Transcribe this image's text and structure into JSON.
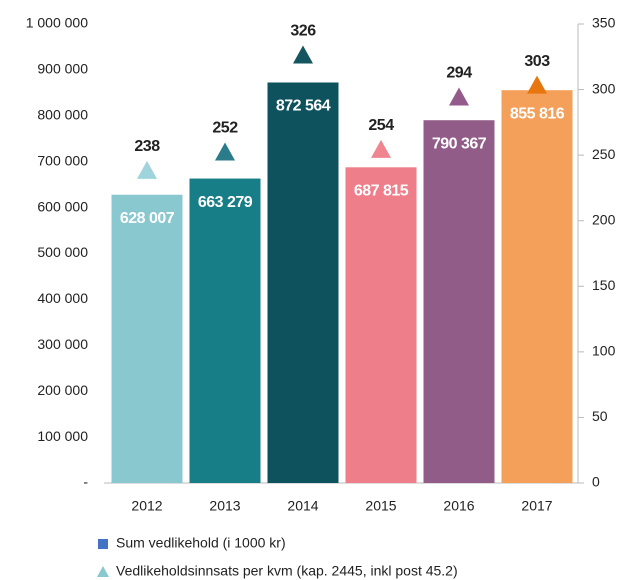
{
  "chart_data": {
    "type": "bar",
    "categories": [
      "2012",
      "2013",
      "2014",
      "2015",
      "2016",
      "2017"
    ],
    "series": [
      {
        "name": "Sum vedlikehold (i 1000 kr)",
        "type": "bar",
        "color": "#4472c4",
        "colors": [
          "#8ac8d0",
          "#177d87",
          "#0d525d",
          "#ee7f8a",
          "#925c88",
          "#f4a05a"
        ],
        "values": [
          628007,
          663279,
          872564,
          687815,
          790367,
          855816
        ],
        "value_labels": [
          "628 007",
          "663 279",
          "872 564",
          "687 815",
          "790 367",
          "855 816"
        ]
      },
      {
        "name": "Vedlikeholdsinnsats per kvm (kap. 2445, inkl post 45.2)",
        "type": "triangle",
        "axis": "y2",
        "color": "#8ac8d0",
        "colors": [
          "#9fd4dc",
          "#2a7c8a",
          "#155560",
          "#f08590",
          "#955a8c",
          "#e8760e"
        ],
        "values": [
          238,
          252,
          326,
          254,
          294,
          303
        ]
      }
    ],
    "ylim": [
      0,
      1000000
    ],
    "yticks": [
      {
        "value": 0,
        "label": "-"
      },
      {
        "value": 100000,
        "label": "100 000"
      },
      {
        "value": 200000,
        "label": "200 000"
      },
      {
        "value": 300000,
        "label": "300 000"
      },
      {
        "value": 400000,
        "label": "400 000"
      },
      {
        "value": 500000,
        "label": "500 000"
      },
      {
        "value": 600000,
        "label": "600 000"
      },
      {
        "value": 700000,
        "label": "700 000"
      },
      {
        "value": 800000,
        "label": "800 000"
      },
      {
        "value": 900000,
        "label": "900 000"
      },
      {
        "value": 1000000,
        "label": "1 000 000"
      }
    ],
    "y2lim": [
      0,
      350
    ],
    "y2ticks": [
      0,
      50,
      100,
      150,
      200,
      250,
      300,
      350
    ],
    "legend": "bottom"
  }
}
